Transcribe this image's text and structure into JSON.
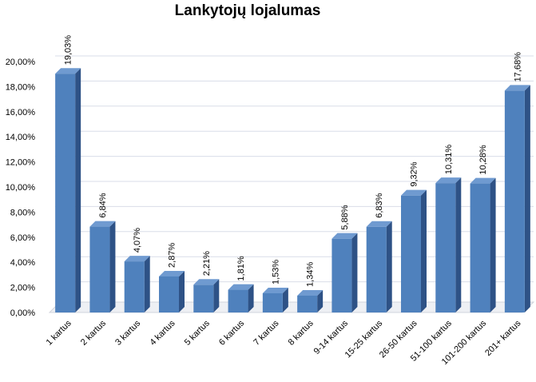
{
  "chart_data": {
    "type": "bar",
    "title": "Lankytojų lojalumas",
    "categories": [
      "1 kartus",
      "2 kartus",
      "3 kartus",
      "4 kartus",
      "5 kartus",
      "6 kartus",
      "7 kartus",
      "8 kartus",
      "9-14 kartus",
      "15-25 kartus",
      "26-50 kartus",
      "51-100 kartus",
      "101-200 kartus",
      "201+ kartus"
    ],
    "values": [
      19.03,
      6.84,
      4.07,
      2.87,
      2.21,
      1.81,
      1.53,
      1.34,
      5.88,
      6.83,
      9.32,
      10.31,
      10.28,
      17.68
    ],
    "data_labels": [
      "19,03%",
      "6,84%",
      "4,07%",
      "2,87%",
      "2,21%",
      "1,81%",
      "1,53%",
      "1,34%",
      "5,88%",
      "6,83%",
      "9,32%",
      "10,31%",
      "10,28%",
      "17,68%"
    ],
    "ylim": [
      0,
      20
    ],
    "y_ticks": [
      0,
      2,
      4,
      6,
      8,
      10,
      12,
      14,
      16,
      18,
      20
    ],
    "y_tick_labels": [
      "0,00%",
      "2,00%",
      "4,00%",
      "6,00%",
      "8,00%",
      "10,00%",
      "12,00%",
      "14,00%",
      "16,00%",
      "18,00%",
      "20,00%"
    ],
    "xlabel": "",
    "ylabel": "",
    "grid": true,
    "legend": "none",
    "colors": {
      "bar_front": "#4f81bd",
      "bar_side": "#2e5286",
      "bar_top": "#6f9ad0",
      "grid": "#d9dde8",
      "floor": "#d0d4dc"
    }
  }
}
